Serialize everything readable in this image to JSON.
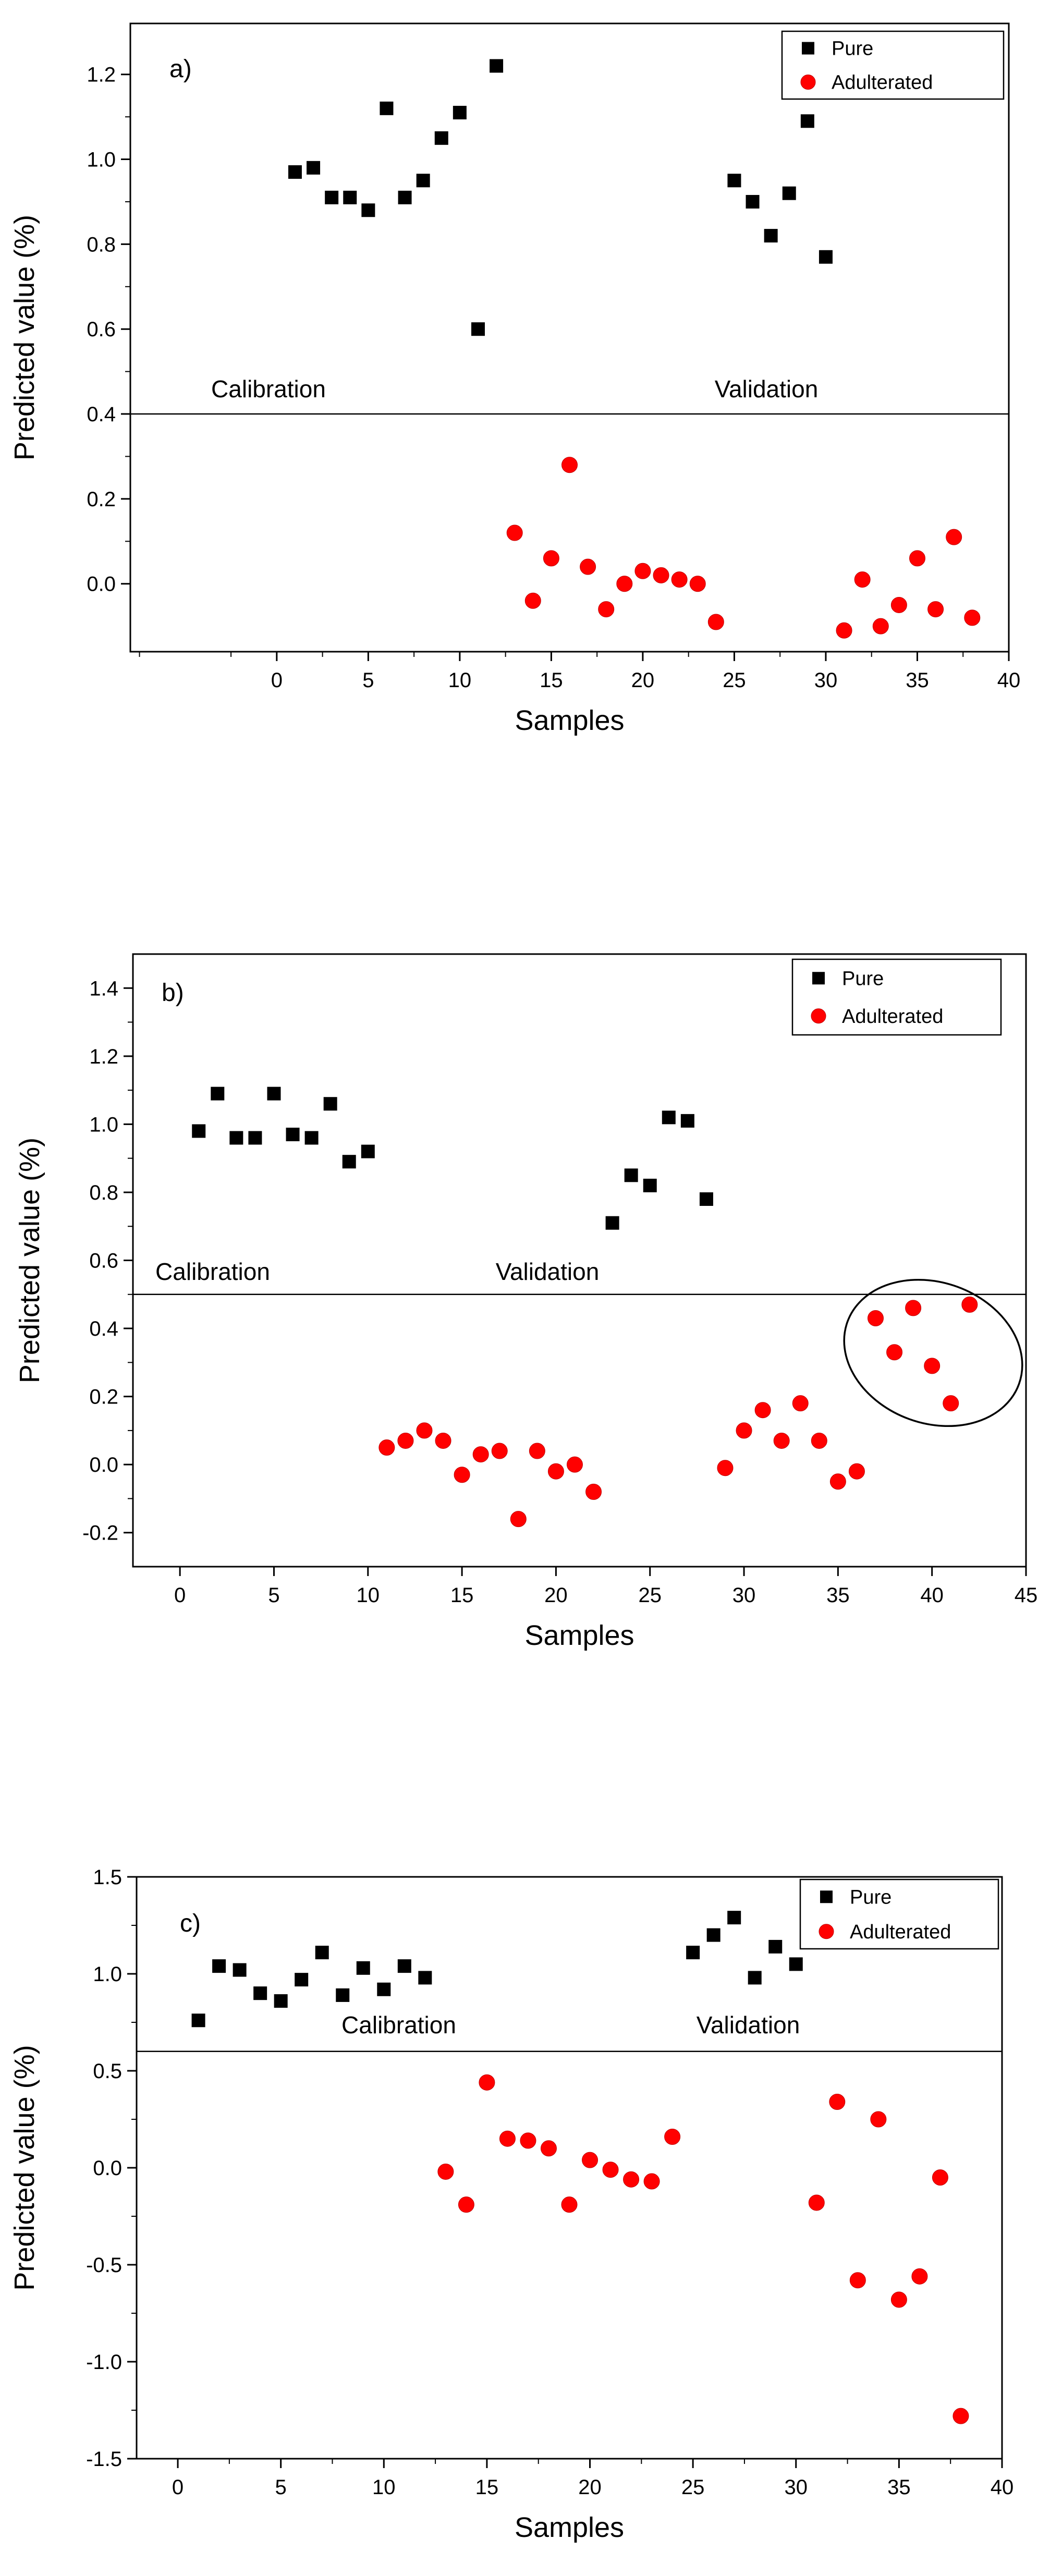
{
  "chart_data": [
    {
      "type": "scatter",
      "panel_label": "a)",
      "xlabel": "Samples",
      "ylabel": "Predicted value (%)",
      "xlim": [
        -8,
        40
      ],
      "ylim": [
        -0.16,
        1.32
      ],
      "xticks": [
        0,
        5,
        10,
        15,
        20,
        25,
        30,
        35,
        40
      ],
      "xtick_labels": [
        "0",
        "5",
        "10",
        "15",
        "20",
        "25",
        "30",
        "35",
        "40"
      ],
      "yticks": [
        0.0,
        0.2,
        0.4,
        0.6,
        0.8,
        1.0,
        1.2
      ],
      "ytick_labels": [
        "0.0",
        "0.2",
        "0.4",
        "0.6",
        "0.8",
        "1.0",
        "1.2"
      ],
      "threshold": 0.4,
      "region_labels": [
        "Calibration",
        "Validation"
      ],
      "legend": [
        "Pure",
        "Adulterated"
      ],
      "legend_position": "top-right",
      "series": [
        {
          "name": "Pure",
          "color": "#000000",
          "marker": "square",
          "x": [
            1,
            2,
            3,
            4,
            5,
            6,
            7,
            8,
            9,
            10,
            11,
            12,
            25,
            26,
            27,
            28,
            29,
            30
          ],
          "y": [
            0.97,
            0.98,
            0.91,
            0.91,
            0.88,
            1.12,
            0.91,
            0.95,
            1.05,
            1.11,
            0.6,
            1.22,
            0.95,
            0.9,
            0.82,
            0.92,
            1.09,
            0.77
          ]
        },
        {
          "name": "Adulterated",
          "color": "#ff0000",
          "marker": "circle",
          "x": [
            13,
            14,
            15,
            16,
            17,
            18,
            19,
            20,
            21,
            22,
            23,
            24,
            31,
            32,
            33,
            34,
            35,
            36,
            37,
            38
          ],
          "y": [
            0.12,
            -0.04,
            0.06,
            0.28,
            0.04,
            -0.06,
            0.0,
            0.03,
            0.02,
            0.01,
            0.0,
            -0.09,
            -0.11,
            0.01,
            -0.1,
            -0.05,
            0.06,
            -0.06,
            0.11,
            -0.08
          ]
        }
      ]
    },
    {
      "type": "scatter",
      "panel_label": "b)",
      "xlabel": "Samples",
      "ylabel": "Predicted value (%)",
      "xlim": [
        -2.5,
        45
      ],
      "ylim": [
        -0.3,
        1.5
      ],
      "xticks": [
        0,
        5,
        10,
        15,
        20,
        25,
        30,
        35,
        40,
        45
      ],
      "xtick_labels": [
        "0",
        "5",
        "10",
        "15",
        "20",
        "25",
        "30",
        "35",
        "40",
        "45"
      ],
      "yticks": [
        -0.2,
        0.0,
        0.2,
        0.4,
        0.6,
        0.8,
        1.0,
        1.2,
        1.4
      ],
      "ytick_labels": [
        "-0.2",
        "0.0",
        "0.2",
        "0.4",
        "0.6",
        "0.8",
        "1.0",
        "1.2",
        "1.4"
      ],
      "threshold": 0.5,
      "region_labels": [
        "Calibration",
        "Validation"
      ],
      "legend": [
        "Pure",
        "Adulterated"
      ],
      "legend_position": "top-right",
      "annotation": "ellipse around samples 37-42",
      "series": [
        {
          "name": "Pure",
          "color": "#000000",
          "marker": "square",
          "x": [
            1,
            2,
            3,
            4,
            5,
            6,
            7,
            8,
            9,
            10,
            23,
            24,
            25,
            26,
            27,
            28
          ],
          "y": [
            0.98,
            1.09,
            0.96,
            0.96,
            1.09,
            0.97,
            0.96,
            1.06,
            0.89,
            0.92,
            0.71,
            0.85,
            0.82,
            1.02,
            1.01,
            0.78
          ]
        },
        {
          "name": "Adulterated",
          "color": "#ff0000",
          "marker": "circle",
          "x": [
            11,
            12,
            13,
            14,
            15,
            16,
            17,
            18,
            19,
            20,
            21,
            22,
            29,
            30,
            31,
            32,
            33,
            34,
            35,
            36,
            37,
            38,
            39,
            40,
            41,
            42
          ],
          "y": [
            0.05,
            0.07,
            0.1,
            0.07,
            -0.03,
            0.03,
            0.04,
            -0.16,
            0.04,
            -0.02,
            0.0,
            -0.08,
            -0.01,
            0.1,
            0.16,
            0.07,
            0.18,
            0.07,
            -0.05,
            -0.02,
            0.43,
            0.33,
            0.46,
            0.29,
            0.18,
            0.47
          ]
        }
      ]
    },
    {
      "type": "scatter",
      "panel_label": "c)",
      "xlabel": "Samples",
      "ylabel": "Predicted value (%)",
      "xlim": [
        -2,
        40
      ],
      "ylim": [
        -1.5,
        1.5
      ],
      "xticks": [
        0,
        5,
        10,
        15,
        20,
        25,
        30,
        35,
        40
      ],
      "xtick_labels": [
        "0",
        "5",
        "10",
        "15",
        "20",
        "25",
        "30",
        "35",
        "40"
      ],
      "yticks": [
        -1.5,
        -1.0,
        -0.5,
        0.0,
        0.5,
        1.0,
        1.5
      ],
      "ytick_labels": [
        "-1.5",
        "-1.0",
        "-0.5",
        "0.0",
        "0.5",
        "1.0",
        "1.5"
      ],
      "threshold": 0.6,
      "region_labels": [
        "Calibration",
        "Validation"
      ],
      "legend": [
        "Pure",
        "Adulterated"
      ],
      "legend_position": "top-right",
      "series": [
        {
          "name": "Pure",
          "color": "#000000",
          "marker": "square",
          "x": [
            1,
            2,
            3,
            4,
            5,
            6,
            7,
            8,
            9,
            10,
            11,
            12,
            25,
            26,
            27,
            28,
            29,
            30
          ],
          "y": [
            0.76,
            1.04,
            1.02,
            0.9,
            0.86,
            0.97,
            1.11,
            0.89,
            1.03,
            0.92,
            1.04,
            0.98,
            1.11,
            1.2,
            1.29,
            0.98,
            1.14,
            1.05
          ]
        },
        {
          "name": "Adulterated",
          "color": "#ff0000",
          "marker": "circle",
          "x": [
            13,
            14,
            15,
            16,
            17,
            18,
            19,
            20,
            21,
            22,
            23,
            24,
            31,
            32,
            33,
            34,
            35,
            36,
            37,
            38
          ],
          "y": [
            -0.02,
            -0.19,
            0.44,
            0.15,
            0.14,
            0.1,
            -0.19,
            0.04,
            -0.01,
            -0.06,
            -0.07,
            0.16,
            -0.18,
            0.34,
            -0.58,
            0.25,
            -0.68,
            -0.56,
            -0.05,
            -1.28
          ]
        }
      ]
    }
  ]
}
